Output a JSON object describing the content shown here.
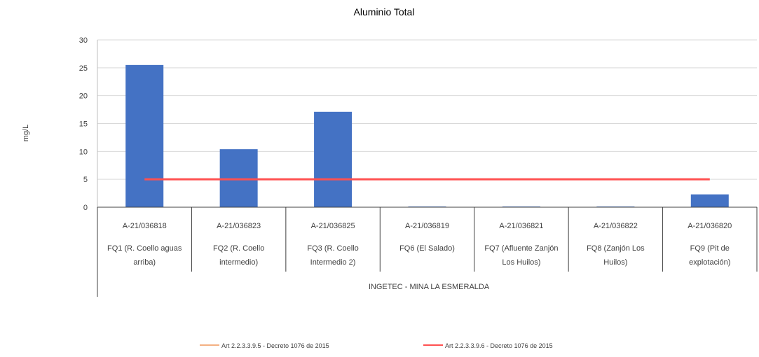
{
  "chart_data": {
    "type": "bar",
    "title": "Aluminio Total",
    "ylabel": "mg/L",
    "ylim": [
      0,
      30
    ],
    "yticks": [
      0,
      5,
      10,
      15,
      20,
      25,
      30
    ],
    "grid": true,
    "legend_position": "bottom",
    "group_label": "INGETEC - MINA LA ESMERALDA",
    "categories": [
      {
        "code": "A-21/036818",
        "line1": "FQ1 (R. Coello aguas",
        "line2": "arriba)"
      },
      {
        "code": "A-21/036823",
        "line1": "FQ2 (R. Coello",
        "line2": "intermedio)"
      },
      {
        "code": "A-21/036825",
        "line1": "FQ3 (R. Coello",
        "line2": "Intermedio 2)"
      },
      {
        "code": "A-21/036819",
        "line1": "FQ6 (El Salado)",
        "line2": ""
      },
      {
        "code": "A-21/036821",
        "line1": "FQ7 (Afluente Zanjón",
        "line2": "Los Huilos)"
      },
      {
        "code": "A-21/036822",
        "line1": "FQ8 (Zanjón Los",
        "line2": "Huilos)"
      },
      {
        "code": "A-21/036820",
        "line1": "FQ9 (Pit de",
        "line2": "explotación)"
      }
    ],
    "values": [
      25.5,
      10.4,
      17.1,
      0.1,
      0.1,
      0.1,
      2.3
    ],
    "bar_color": "#4472c4",
    "lines": [
      {
        "name": "Art 2.2.3.3.9.5 - Decreto 1076 de 2015",
        "color": "#f4b183",
        "value": null
      },
      {
        "name": "Art 2.2.3.3.9.6 - Decreto 1076 de 2015",
        "color": "#ff5050",
        "value": 5
      }
    ]
  }
}
